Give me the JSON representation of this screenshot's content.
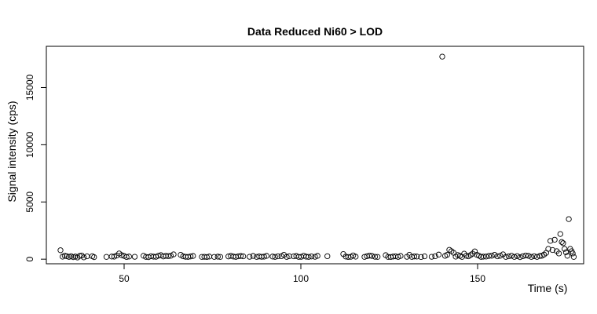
{
  "chart_data": {
    "type": "scatter",
    "title": "Data Reduced Ni60 > LOD",
    "xlabel": "Time (s)",
    "ylabel": "Signal intensity (cps)",
    "xlim": [
      28,
      180
    ],
    "ylim": [
      -400,
      18600
    ],
    "xticks": [
      50,
      100,
      150
    ],
    "yticks": [
      0,
      5000,
      10000,
      15000
    ],
    "grid": false,
    "legend": "none",
    "marker": "open-circle",
    "series": [
      {
        "points": [
          [
            32.0,
            780
          ],
          [
            32.6,
            220
          ],
          [
            33.2,
            300
          ],
          [
            33.8,
            260
          ],
          [
            34.4,
            200
          ],
          [
            35.0,
            260
          ],
          [
            35.6,
            180
          ],
          [
            36.2,
            230
          ],
          [
            36.8,
            150
          ],
          [
            37.4,
            280
          ],
          [
            38.0,
            320
          ],
          [
            38.6,
            160
          ],
          [
            39.5,
            250
          ],
          [
            41.0,
            260
          ],
          [
            41.5,
            180
          ],
          [
            45.0,
            200
          ],
          [
            46.5,
            230
          ],
          [
            47.2,
            220
          ],
          [
            47.9,
            320
          ],
          [
            48.6,
            500
          ],
          [
            49.3,
            350
          ],
          [
            50.0,
            280
          ],
          [
            50.7,
            190
          ],
          [
            51.4,
            230
          ],
          [
            53.0,
            210
          ],
          [
            55.5,
            300
          ],
          [
            56.2,
            200
          ],
          [
            56.9,
            180
          ],
          [
            57.6,
            260
          ],
          [
            58.3,
            220
          ],
          [
            59.0,
            210
          ],
          [
            59.7,
            300
          ],
          [
            60.4,
            350
          ],
          [
            61.1,
            240
          ],
          [
            61.8,
            290
          ],
          [
            62.5,
            270
          ],
          [
            63.2,
            300
          ],
          [
            64.0,
            420
          ],
          [
            66.0,
            380
          ],
          [
            66.7,
            250
          ],
          [
            67.4,
            210
          ],
          [
            68.1,
            200
          ],
          [
            68.8,
            240
          ],
          [
            69.5,
            280
          ],
          [
            72.0,
            200
          ],
          [
            72.7,
            210
          ],
          [
            73.4,
            190
          ],
          [
            74.1,
            230
          ],
          [
            75.5,
            200
          ],
          [
            76.5,
            220
          ],
          [
            77.2,
            200
          ],
          [
            79.5,
            240
          ],
          [
            80.2,
            290
          ],
          [
            80.9,
            230
          ],
          [
            81.6,
            200
          ],
          [
            82.3,
            250
          ],
          [
            83.0,
            280
          ],
          [
            83.7,
            250
          ],
          [
            85.5,
            210
          ],
          [
            86.5,
            280
          ],
          [
            87.5,
            200
          ],
          [
            88.2,
            240
          ],
          [
            88.9,
            210
          ],
          [
            89.6,
            220
          ],
          [
            90.3,
            290
          ],
          [
            92.0,
            230
          ],
          [
            92.7,
            200
          ],
          [
            93.5,
            250
          ],
          [
            94.5,
            260
          ],
          [
            95.2,
            380
          ],
          [
            96.0,
            200
          ],
          [
            96.7,
            260
          ],
          [
            98.0,
            250
          ],
          [
            98.7,
            280
          ],
          [
            99.4,
            200
          ],
          [
            100.1,
            210
          ],
          [
            100.8,
            300
          ],
          [
            101.5,
            220
          ],
          [
            102.2,
            200
          ],
          [
            103.0,
            240
          ],
          [
            104.0,
            210
          ],
          [
            104.7,
            290
          ],
          [
            107.5,
            260
          ],
          [
            112.0,
            450
          ],
          [
            112.7,
            230
          ],
          [
            113.4,
            190
          ],
          [
            114.1,
            210
          ],
          [
            114.8,
            330
          ],
          [
            115.5,
            220
          ],
          [
            118.0,
            200
          ],
          [
            118.7,
            260
          ],
          [
            119.4,
            310
          ],
          [
            120.1,
            280
          ],
          [
            121.0,
            210
          ],
          [
            121.7,
            200
          ],
          [
            124.0,
            350
          ],
          [
            124.7,
            200
          ],
          [
            125.4,
            190
          ],
          [
            126.1,
            230
          ],
          [
            126.8,
            250
          ],
          [
            127.5,
            200
          ],
          [
            128.2,
            280
          ],
          [
            130.0,
            210
          ],
          [
            130.7,
            380
          ],
          [
            131.4,
            200
          ],
          [
            132.1,
            240
          ],
          [
            132.8,
            230
          ],
          [
            134.0,
            190
          ],
          [
            135.0,
            250
          ],
          [
            137.0,
            210
          ],
          [
            138.0,
            260
          ],
          [
            139.0,
            400
          ],
          [
            140.0,
            17700
          ],
          [
            140.8,
            290
          ],
          [
            141.4,
            380
          ],
          [
            142.0,
            820
          ],
          [
            142.6,
            700
          ],
          [
            143.2,
            560
          ],
          [
            143.8,
            220
          ],
          [
            144.4,
            360
          ],
          [
            145.0,
            280
          ],
          [
            145.6,
            200
          ],
          [
            146.2,
            480
          ],
          [
            146.8,
            300
          ],
          [
            147.4,
            250
          ],
          [
            148.0,
            360
          ],
          [
            148.6,
            480
          ],
          [
            149.2,
            680
          ],
          [
            149.8,
            380
          ],
          [
            150.4,
            300
          ],
          [
            151.0,
            200
          ],
          [
            151.6,
            220
          ],
          [
            152.4,
            230
          ],
          [
            153.2,
            280
          ],
          [
            154.0,
            300
          ],
          [
            154.8,
            380
          ],
          [
            155.6,
            250
          ],
          [
            156.4,
            300
          ],
          [
            157.2,
            420
          ],
          [
            158.0,
            200
          ],
          [
            158.8,
            250
          ],
          [
            159.6,
            300
          ],
          [
            160.4,
            200
          ],
          [
            161.2,
            270
          ],
          [
            162.0,
            180
          ],
          [
            162.8,
            260
          ],
          [
            163.6,
            320
          ],
          [
            164.4,
            290
          ],
          [
            165.2,
            200
          ],
          [
            166.0,
            260
          ],
          [
            166.8,
            200
          ],
          [
            167.6,
            280
          ],
          [
            168.2,
            300
          ],
          [
            168.8,
            400
          ],
          [
            169.4,
            550
          ],
          [
            170.0,
            900
          ],
          [
            170.6,
            1600
          ],
          [
            171.2,
            800
          ],
          [
            171.8,
            1700
          ],
          [
            172.4,
            700
          ],
          [
            173.0,
            500
          ],
          [
            173.4,
            2200
          ],
          [
            173.8,
            1500
          ],
          [
            174.2,
            1400
          ],
          [
            174.6,
            900
          ],
          [
            175.0,
            600
          ],
          [
            175.4,
            300
          ],
          [
            175.8,
            3500
          ],
          [
            176.2,
            900
          ],
          [
            176.6,
            700
          ],
          [
            176.9,
            500
          ],
          [
            177.2,
            200
          ]
        ]
      }
    ]
  }
}
